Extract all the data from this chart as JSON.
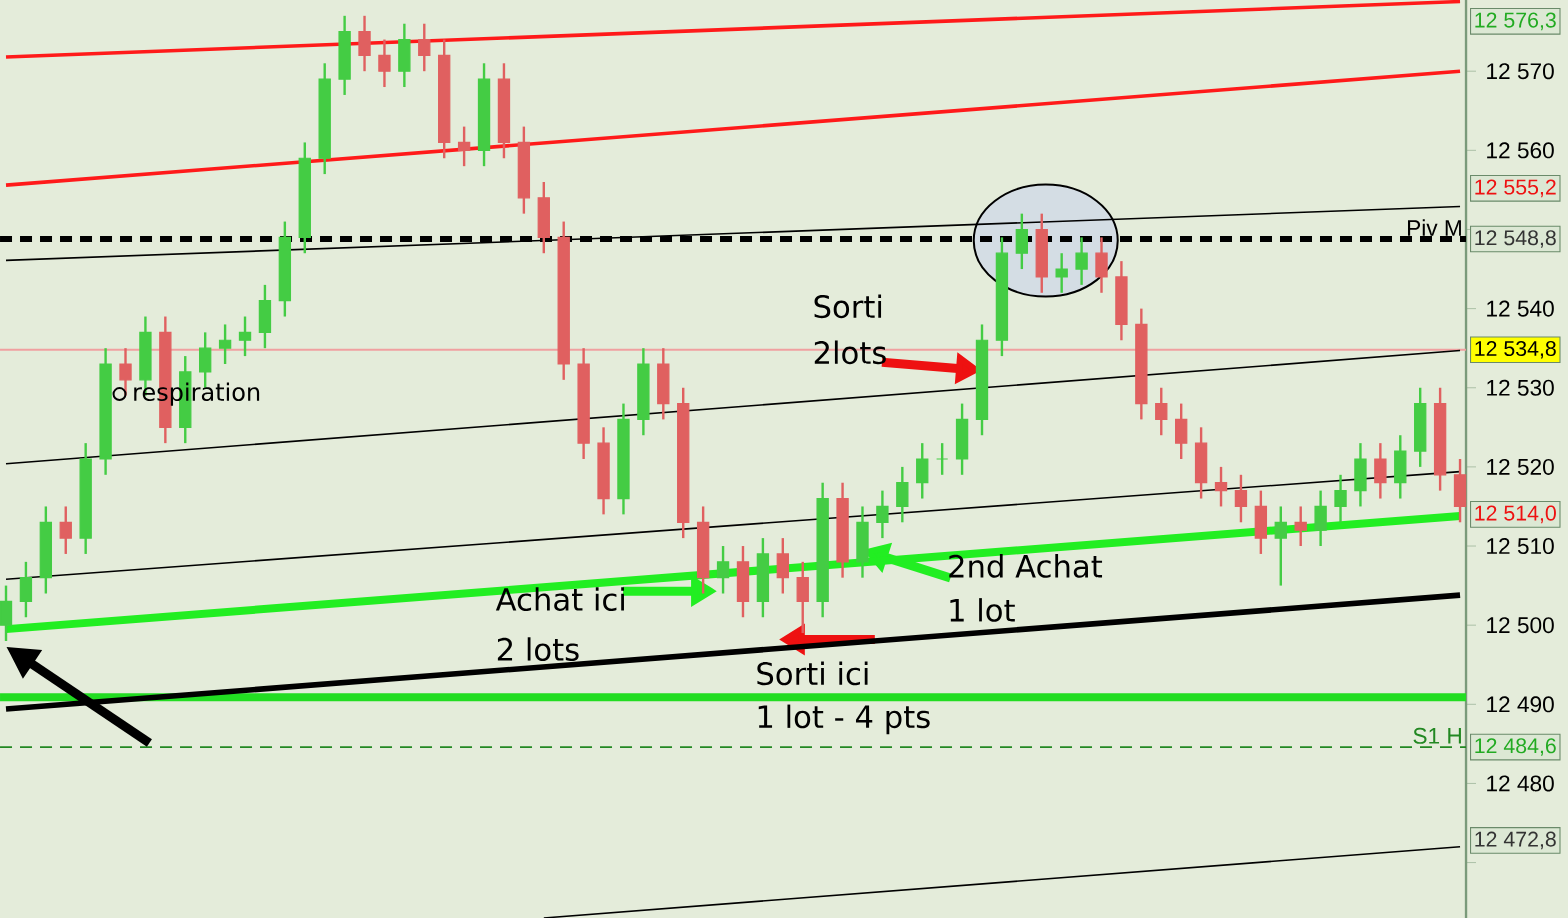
{
  "chart_data": {
    "type": "candlestick",
    "categories": [
      null,
      null,
      null,
      null,
      null,
      null,
      null,
      null,
      null,
      null,
      null,
      null,
      null,
      null,
      null,
      null,
      null,
      null,
      null,
      null,
      null,
      null,
      null,
      null,
      null,
      null,
      null,
      null,
      null,
      null,
      null,
      null,
      null,
      null,
      null,
      null,
      null,
      null,
      null,
      null,
      null,
      null,
      null,
      null,
      null,
      null,
      null,
      null,
      null,
      null,
      null,
      null,
      null,
      null,
      null,
      null,
      null,
      null,
      null,
      null,
      null,
      null,
      null,
      null,
      null,
      null,
      null,
      null,
      null,
      null,
      null,
      null,
      null,
      null
    ],
    "ohlc": [
      [
        12500,
        12505,
        12498,
        12503
      ],
      [
        12503,
        12508,
        12501,
        12506
      ],
      [
        12506,
        12515,
        12504,
        12513
      ],
      [
        12513,
        12515,
        12509,
        12511
      ],
      [
        12511,
        12523,
        12509,
        12521
      ],
      [
        12521,
        12535,
        12519,
        12533
      ],
      [
        12533,
        12535,
        12529,
        12531
      ],
      [
        12531,
        12539,
        12529,
        12537
      ],
      [
        12537,
        12539,
        12523,
        12525
      ],
      [
        12525,
        12534,
        12523,
        12532
      ],
      [
        12532,
        12537,
        12530,
        12535
      ],
      [
        12535,
        12538,
        12533,
        12536
      ],
      [
        12536,
        12539,
        12534,
        12537
      ],
      [
        12537,
        12543,
        12535,
        12541
      ],
      [
        12541,
        12551,
        12539,
        12549
      ],
      [
        12549,
        12561,
        12547,
        12559
      ],
      [
        12559,
        12571,
        12557,
        12569
      ],
      [
        12569,
        12577,
        12567,
        12575
      ],
      [
        12575,
        12577,
        12570,
        12572
      ],
      [
        12572,
        12574,
        12568,
        12570
      ],
      [
        12570,
        12576,
        12568,
        12574
      ],
      [
        12574,
        12576,
        12570,
        12572
      ],
      [
        12572,
        12574,
        12559,
        12561
      ],
      [
        12561,
        12563,
        12558,
        12560
      ],
      [
        12560,
        12571,
        12558,
        12569
      ],
      [
        12569,
        12571,
        12559,
        12561
      ],
      [
        12561,
        12563,
        12552,
        12554
      ],
      [
        12554,
        12556,
        12547,
        12549
      ],
      [
        12549,
        12551,
        12531,
        12533
      ],
      [
        12533,
        12535,
        12521,
        12523
      ],
      [
        12523,
        12525,
        12514,
        12516
      ],
      [
        12516,
        12528,
        12514,
        12526
      ],
      [
        12526,
        12535,
        12524,
        12533
      ],
      [
        12533,
        12535,
        12526,
        12528
      ],
      [
        12528,
        12530,
        12511,
        12513
      ],
      [
        12513,
        12515,
        12504,
        12506
      ],
      [
        12506,
        12510,
        12504,
        12508
      ],
      [
        12508,
        12510,
        12501,
        12503
      ],
      [
        12503,
        12511,
        12501,
        12509
      ],
      [
        12509,
        12511,
        12504,
        12506
      ],
      [
        12506,
        12508,
        12499,
        12503
      ],
      [
        12503,
        12518,
        12501,
        12516
      ],
      [
        12516,
        12518,
        12506,
        12508
      ],
      [
        12508,
        12515,
        12506,
        12513
      ],
      [
        12513,
        12517,
        12511,
        12515
      ],
      [
        12515,
        12520,
        12513,
        12518
      ],
      [
        12518,
        12523,
        12516,
        12521
      ],
      [
        12521,
        12523,
        12519,
        12521
      ],
      [
        12521,
        12528,
        12519,
        12526
      ],
      [
        12526,
        12538,
        12524,
        12536
      ],
      [
        12536,
        12549,
        12534,
        12547
      ],
      [
        12547,
        12552,
        12545,
        12550
      ],
      [
        12550,
        12552,
        12542,
        12544
      ],
      [
        12544,
        12547,
        12542,
        12545
      ],
      [
        12545,
        12549,
        12543,
        12547
      ],
      [
        12547,
        12549,
        12542,
        12544
      ],
      [
        12544,
        12546,
        12536,
        12538
      ],
      [
        12538,
        12540,
        12526,
        12528
      ],
      [
        12528,
        12530,
        12524,
        12526
      ],
      [
        12526,
        12528,
        12521,
        12523
      ],
      [
        12523,
        12525,
        12516,
        12518
      ],
      [
        12518,
        12520,
        12515,
        12517
      ],
      [
        12517,
        12519,
        12513,
        12515
      ],
      [
        12515,
        12517,
        12509,
        12511
      ],
      [
        12511,
        12515,
        12505,
        12513
      ],
      [
        12513,
        12515,
        12510,
        12512
      ],
      [
        12512,
        12517,
        12510,
        12515
      ],
      [
        12515,
        12519,
        12513,
        12517
      ],
      [
        12517,
        12523,
        12515,
        12521
      ],
      [
        12521,
        12523,
        12516,
        12518
      ],
      [
        12518,
        12524,
        12516,
        12522
      ],
      [
        12522,
        12530,
        12520,
        12528
      ],
      [
        12528,
        12530,
        12517,
        12519
      ],
      [
        12519,
        12521,
        12513,
        12515
      ]
    ],
    "colors": [
      "#44cc44",
      "#44cc44",
      "#44cc44",
      "#e06060",
      "#44cc44",
      "#44cc44",
      "#e06060",
      "#44cc44",
      "#e06060",
      "#44cc44",
      "#44cc44",
      "#44cc44",
      "#44cc44",
      "#44cc44",
      "#44cc44",
      "#44cc44",
      "#44cc44",
      "#44cc44",
      "#e06060",
      "#e06060",
      "#44cc44",
      "#e06060",
      "#e06060",
      "#e06060",
      "#44cc44",
      "#e06060",
      "#e06060",
      "#e06060",
      "#e06060",
      "#e06060",
      "#e06060",
      "#44cc44",
      "#44cc44",
      "#e06060",
      "#e06060",
      "#e06060",
      "#44cc44",
      "#e06060",
      "#44cc44",
      "#e06060",
      "#e06060",
      "#44cc44",
      "#e06060",
      "#44cc44",
      "#44cc44",
      "#44cc44",
      "#44cc44",
      "#44cc44",
      "#44cc44",
      "#44cc44",
      "#44cc44",
      "#44cc44",
      "#e06060",
      "#44cc44",
      "#44cc44",
      "#e06060",
      "#e06060",
      "#e06060",
      "#e06060",
      "#e06060",
      "#e06060",
      "#e06060",
      "#e06060",
      "#e06060",
      "#44cc44",
      "#e06060",
      "#44cc44",
      "#44cc44",
      "#44cc44",
      "#e06060",
      "#44cc44",
      "#44cc44",
      "#e06060",
      "#e06060"
    ],
    "series": [
      {
        "type": "line",
        "values": [
          12571.8,
          null,
          null,
          null,
          null,
          null,
          null,
          null,
          null,
          null,
          null,
          null,
          null,
          null,
          null,
          null,
          null,
          null,
          null,
          null,
          null,
          null,
          null,
          null,
          null,
          null,
          null,
          null,
          null,
          null,
          null,
          null,
          null,
          null,
          null,
          null,
          null,
          null,
          null,
          null,
          null,
          null,
          null,
          null,
          null,
          null,
          null,
          null,
          null,
          null,
          null,
          null,
          null,
          null,
          null,
          null,
          null,
          null,
          null,
          null,
          null,
          null,
          null,
          null,
          null,
          null,
          null,
          null,
          null,
          null,
          null,
          null,
          null,
          12578.8
        ],
        "color": "#ff1a1a"
      },
      {
        "type": "line",
        "values": [
          12555.6,
          null,
          null,
          null,
          null,
          null,
          null,
          null,
          null,
          null,
          null,
          null,
          null,
          null,
          null,
          null,
          null,
          null,
          null,
          null,
          null,
          null,
          null,
          null,
          null,
          null,
          null,
          null,
          null,
          null,
          null,
          null,
          null,
          null,
          null,
          null,
          null,
          null,
          null,
          null,
          null,
          null,
          null,
          null,
          null,
          null,
          null,
          null,
          null,
          null,
          null,
          null,
          null,
          null,
          null,
          null,
          null,
          null,
          null,
          null,
          null,
          null,
          null,
          null,
          null,
          null,
          null,
          null,
          null,
          null,
          null,
          null,
          null,
          12570.0
        ],
        "color": "#ff1a1a"
      },
      {
        "type": "line",
        "values": [
          12546.1,
          null,
          null,
          null,
          null,
          null,
          null,
          null,
          null,
          null,
          null,
          null,
          null,
          null,
          null,
          null,
          null,
          null,
          null,
          null,
          null,
          null,
          null,
          null,
          null,
          null,
          null,
          null,
          null,
          null,
          null,
          null,
          null,
          null,
          null,
          null,
          null,
          null,
          null,
          null,
          null,
          null,
          null,
          null,
          null,
          null,
          null,
          null,
          null,
          null,
          null,
          null,
          null,
          null,
          null,
          null,
          null,
          null,
          null,
          null,
          null,
          null,
          null,
          null,
          null,
          null,
          null,
          null,
          null,
          null,
          null,
          null,
          null,
          12552.9
        ],
        "color": "#000000"
      },
      {
        "type": "line",
        "values": [
          12520.4,
          null,
          null,
          null,
          null,
          null,
          null,
          null,
          null,
          null,
          null,
          null,
          null,
          null,
          null,
          null,
          null,
          null,
          null,
          null,
          null,
          null,
          null,
          null,
          null,
          null,
          null,
          null,
          null,
          null,
          null,
          null,
          null,
          null,
          null,
          null,
          null,
          null,
          null,
          null,
          null,
          null,
          null,
          null,
          null,
          null,
          null,
          null,
          null,
          null,
          null,
          null,
          null,
          null,
          null,
          null,
          null,
          null,
          null,
          null,
          null,
          null,
          null,
          null,
          null,
          null,
          null,
          null,
          null,
          null,
          null,
          null,
          null,
          12534.7
        ],
        "color": "#000000"
      },
      {
        "type": "line",
        "values": [
          12505.8,
          null,
          null,
          null,
          null,
          null,
          null,
          null,
          null,
          null,
          null,
          null,
          null,
          null,
          null,
          null,
          null,
          null,
          null,
          null,
          null,
          null,
          null,
          null,
          null,
          null,
          null,
          null,
          null,
          null,
          null,
          null,
          null,
          null,
          null,
          null,
          null,
          null,
          null,
          null,
          null,
          null,
          null,
          null,
          null,
          null,
          null,
          null,
          null,
          null,
          null,
          null,
          null,
          null,
          null,
          null,
          null,
          null,
          null,
          null,
          null,
          null,
          null,
          null,
          null,
          null,
          null,
          null,
          null,
          null,
          null,
          null,
          null,
          12519.4
        ],
        "color": "#000000"
      },
      {
        "type": "line",
        "values": [
          12499.5,
          null,
          null,
          null,
          null,
          null,
          null,
          null,
          null,
          null,
          null,
          null,
          null,
          null,
          null,
          null,
          null,
          null,
          null,
          null,
          null,
          null,
          null,
          null,
          null,
          null,
          null,
          null,
          null,
          null,
          null,
          null,
          null,
          null,
          null,
          null,
          null,
          null,
          null,
          null,
          null,
          null,
          null,
          null,
          null,
          null,
          null,
          null,
          null,
          null,
          null,
          null,
          null,
          null,
          null,
          null,
          null,
          null,
          null,
          null,
          null,
          null,
          null,
          null,
          null,
          null,
          null,
          null,
          null,
          null,
          null,
          null,
          null,
          12513.8
        ],
        "color": "#22ee22"
      },
      {
        "type": "line",
        "values": [
          12489.4,
          null,
          null,
          null,
          null,
          null,
          null,
          null,
          null,
          null,
          null,
          null,
          null,
          null,
          null,
          null,
          null,
          null,
          null,
          null,
          null,
          null,
          null,
          null,
          null,
          null,
          null,
          null,
          null,
          null,
          null,
          null,
          null,
          null,
          null,
          null,
          null,
          null,
          null,
          null,
          null,
          null,
          null,
          null,
          null,
          null,
          null,
          null,
          null,
          null,
          null,
          null,
          null,
          null,
          null,
          null,
          null,
          null,
          null,
          null,
          null,
          null,
          null,
          null,
          null,
          null,
          null,
          null,
          null,
          null,
          null,
          null,
          null,
          12503.8
        ],
        "color": "#000000"
      },
      {
        "type": "line",
        "values": [
          null,
          null,
          null,
          null,
          null,
          null,
          null,
          null,
          null,
          null,
          null,
          null,
          null,
          null,
          null,
          null,
          null,
          null,
          null,
          null,
          null,
          null,
          null,
          null,
          null,
          null,
          null,
          12463,
          null,
          null,
          null,
          null,
          null,
          null,
          null,
          null,
          null,
          null,
          null,
          null,
          null,
          null,
          null,
          null,
          null,
          null,
          null,
          null,
          null,
          null,
          null,
          null,
          null,
          null,
          null,
          null,
          null,
          null,
          null,
          null,
          null,
          null,
          null,
          null,
          null,
          null,
          null,
          null,
          null,
          null,
          null,
          null,
          null,
          12472
        ],
        "color": "#000000"
      }
    ],
    "ylim": [
      12463,
      12579
    ],
    "yticks": [
      {
        "value": 12470,
        "label": null
      },
      {
        "value": 12480,
        "label": "12 480"
      },
      {
        "value": 12490,
        "label": "12 490"
      },
      {
        "value": 12500,
        "label": "12 500"
      },
      {
        "value": 12510,
        "label": "12 510"
      },
      {
        "value": 12520,
        "label": "12 520"
      },
      {
        "value": 12530,
        "label": "12 530"
      },
      {
        "value": 12540,
        "label": "12 540"
      },
      {
        "value": 12550,
        "label": null
      },
      {
        "value": 12560,
        "label": "12 560"
      },
      {
        "value": 12570,
        "label": "12 570"
      }
    ],
    "tick_labels": "y",
    "ref_lines": [
      {
        "axis": "y",
        "value": 12548.8,
        "label": "Piv M",
        "color": "#000000",
        "line_style": "dashed"
      },
      {
        "axis": "y",
        "value": 12490.9,
        "color": "#22dd22"
      },
      {
        "axis": "y",
        "value": 12484.6,
        "label": "S1 H",
        "color": "#228822",
        "line_style": "dashed"
      },
      {
        "axis": "y",
        "value": 12534.8,
        "color": "#f0a0a0"
      }
    ],
    "annotations": [
      {
        "text": "respiration",
        "y": 12529.2
      },
      "Sorti",
      "2lots",
      {
        "text": "Achat ici",
        "y": 12504.3
      },
      {
        "text": "2 lots",
        "y": 12504.3
      },
      {
        "text": "2nd Achat",
        "y": 12509.5
      },
      {
        "text": "1 lot",
        "y": 12509.5
      },
      {
        "text": "Sorti ici",
        "y": 12498.2
      },
      {
        "text": "1 lot - 4 pts",
        "y": 12498.2
      },
      "12 576,3",
      "12 555,2",
      "12 548,8",
      "12 534,8",
      "12 514,0",
      "12 484,6",
      "12 472,8"
    ]
  }
}
